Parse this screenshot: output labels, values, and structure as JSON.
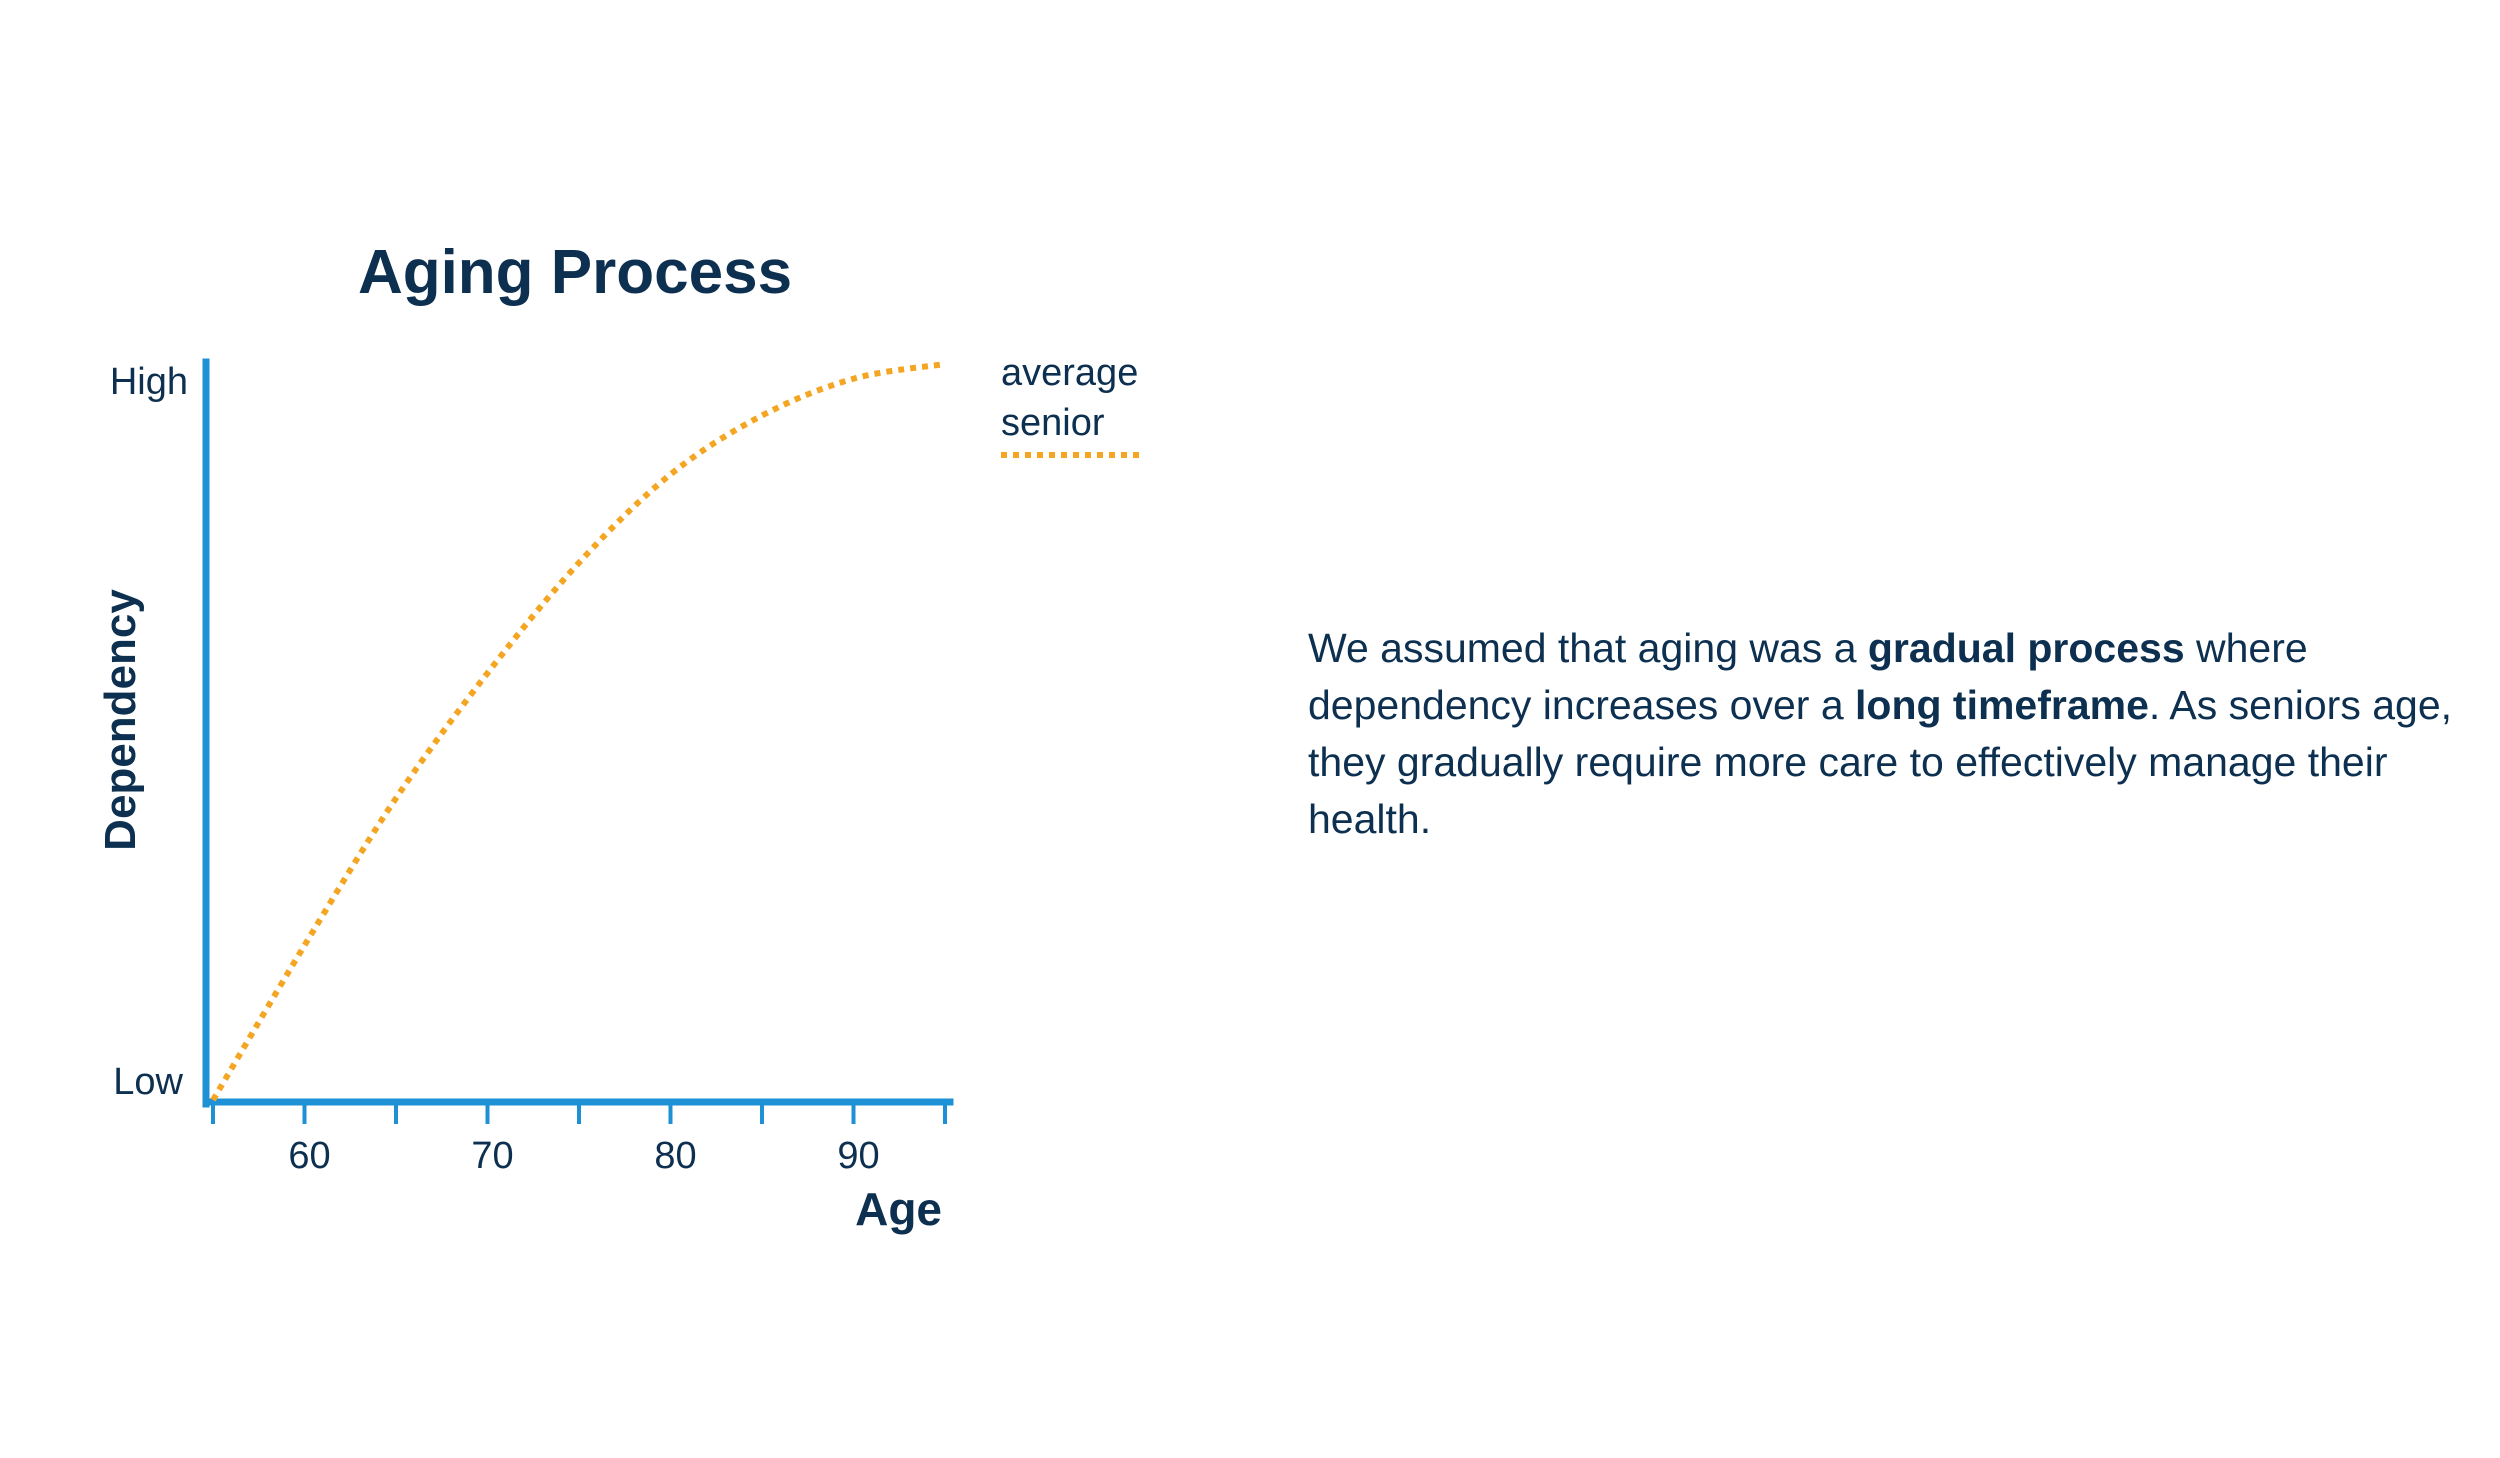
{
  "chart_data": {
    "type": "line",
    "title": "Aging Process",
    "xlabel": "Age",
    "ylabel": "Dependency",
    "x_ticks": [
      60,
      70,
      80,
      90
    ],
    "y_tick_labels": [
      "Low",
      "High"
    ],
    "xlim": [
      55,
      95
    ],
    "ylim": [
      0,
      1
    ],
    "grid": false,
    "legend_placement": "top-right",
    "series": [
      {
        "name": "average senior",
        "line_style": "dotted",
        "color": "#f4a623",
        "x": [
          55,
          60,
          65,
          70,
          75,
          80,
          85,
          90,
          95
        ],
        "y": [
          0.0,
          0.21,
          0.41,
          0.58,
          0.73,
          0.85,
          0.93,
          0.98,
          1.0
        ]
      }
    ]
  },
  "legend": {
    "line1": "average",
    "line2": "senior"
  },
  "description": {
    "part1": "We assumed that aging was a ",
    "bold1": "gradual process",
    "part2": " where dependency increases over a ",
    "bold2": "long timeframe",
    "part3": ". As seniors age, they gradually require more care to effectively manage their health."
  },
  "colors": {
    "axis": "#1e90d6",
    "curve": "#f4a623",
    "text": "#0d3050"
  }
}
